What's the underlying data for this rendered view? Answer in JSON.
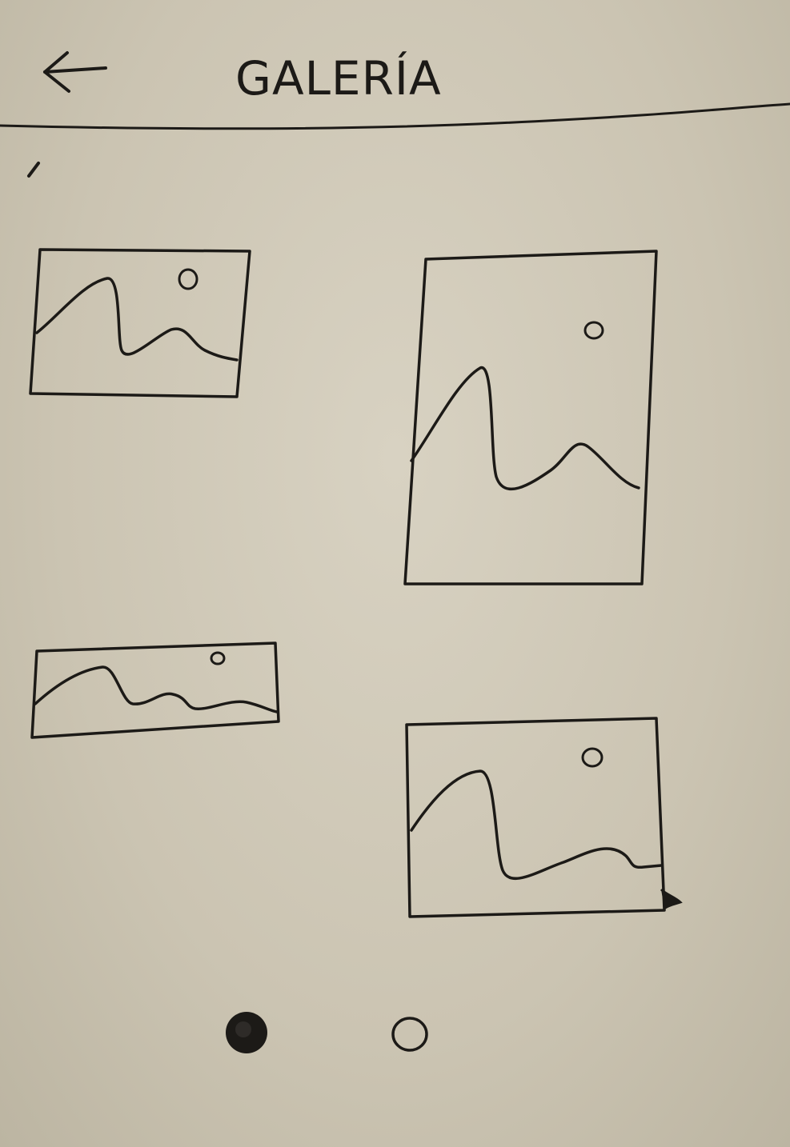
{
  "header": {
    "title": "GALERÍA",
    "back_icon": "arrow-left-icon"
  },
  "gallery": {
    "images": [
      {
        "icon": "image-placeholder-icon"
      },
      {
        "icon": "image-placeholder-icon"
      },
      {
        "icon": "image-placeholder-icon"
      },
      {
        "icon": "image-placeholder-icon"
      }
    ]
  },
  "pagination": {
    "page_count": 2,
    "current_page": 1
  },
  "colors": {
    "paper": "#cbc4b2",
    "ink": "#1c1a17"
  }
}
